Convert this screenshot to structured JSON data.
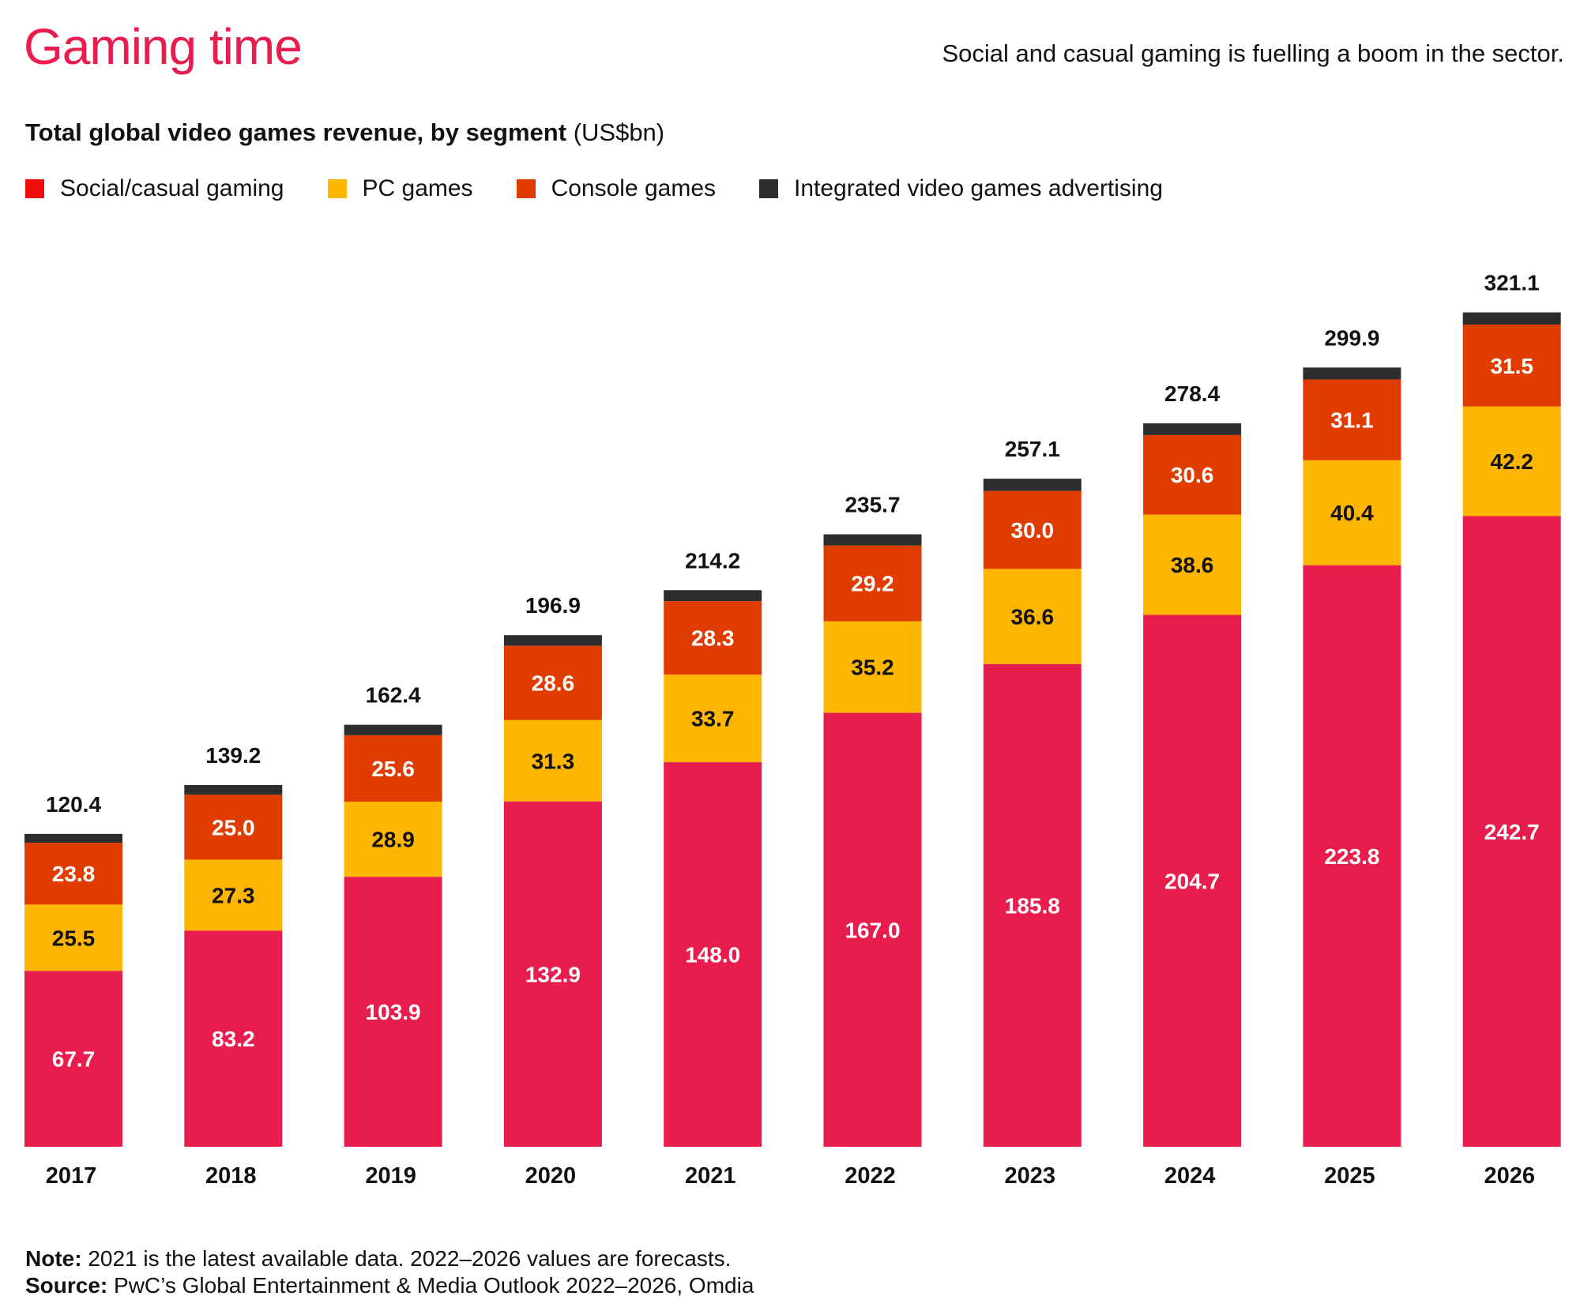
{
  "header": {
    "title": "Gaming time",
    "subtitle": "Social and casual gaming is fuelling a boom in the sector."
  },
  "chart_data": {
    "type": "bar",
    "stacked": true,
    "title": "Total global video games revenue, by segment",
    "unit": "(US$bn)",
    "xlabel": "",
    "ylabel": "",
    "grid": false,
    "legend_position": "top-left",
    "categories": [
      "2017",
      "2018",
      "2019",
      "2020",
      "2021",
      "2022",
      "2023",
      "2024",
      "2025",
      "2026"
    ],
    "series": [
      {
        "name": "Social/casual gaming",
        "color": "#E91C4E",
        "legend_color": "#F20D0D",
        "label_color": "#ffffff",
        "values": [
          67.7,
          83.2,
          103.9,
          132.9,
          148.0,
          167.0,
          185.8,
          204.7,
          223.8,
          242.7
        ]
      },
      {
        "name": "PC games",
        "color": "#FFB600",
        "legend_color": "#FFB600",
        "label_color": "#111111",
        "values": [
          25.5,
          27.3,
          28.9,
          31.3,
          33.7,
          35.2,
          36.6,
          38.6,
          40.4,
          42.2
        ]
      },
      {
        "name": "Console games",
        "color": "#E03C00",
        "legend_color": "#E03C00",
        "label_color": "#ffffff",
        "values": [
          23.8,
          25.0,
          25.6,
          28.6,
          28.3,
          29.2,
          30.0,
          30.6,
          31.1,
          31.5
        ]
      },
      {
        "name": "Integrated video games advertising",
        "color": "#2D2D2D",
        "legend_color": "#2D2D2D",
        "label_color": null,
        "values": [
          3.4,
          3.7,
          4.0,
          4.1,
          4.2,
          4.3,
          4.7,
          4.5,
          4.6,
          4.7
        ]
      }
    ],
    "totals": [
      "120.4",
      "139.2",
      "162.4",
      "196.9",
      "214.2",
      "235.7",
      "257.1",
      "278.4",
      "299.9",
      "321.1"
    ],
    "ylim": [
      0,
      330
    ]
  },
  "footer": {
    "note_label": "Note:",
    "note_text": " 2021 is the latest available data. 2022–2026 values are forecasts.",
    "source_label": "Source:",
    "source_text": " PwC’s Global Entertainment & Media Outlook 2022–2026, Omdia"
  }
}
